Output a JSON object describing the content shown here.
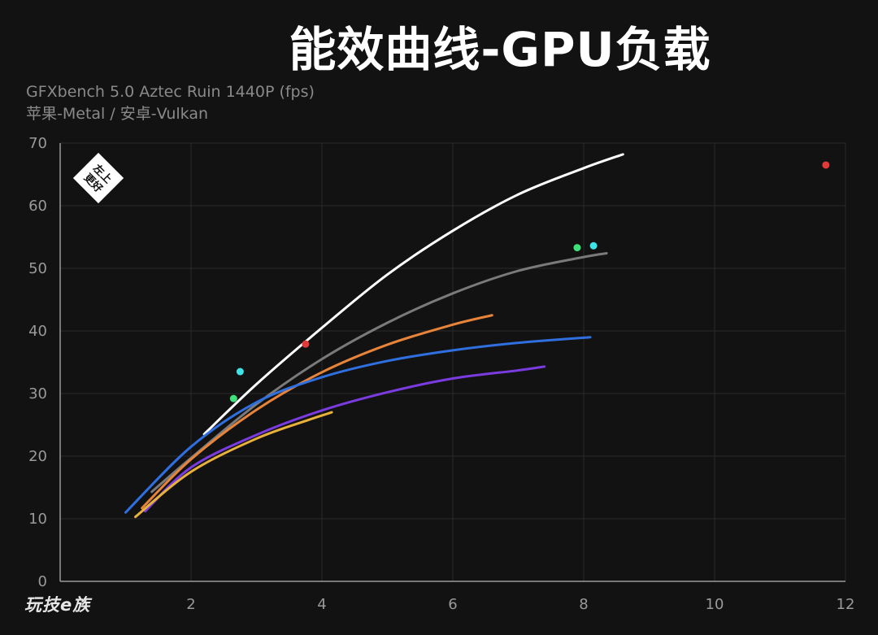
{
  "header": {
    "title": "能效曲线-GPU负载",
    "subtitle_line1": "GFXbench 5.0 Aztec Ruin 1440P (fps)",
    "subtitle_line2": "苹果-Metal / 安卓-Vulkan"
  },
  "badge": {
    "line1": "左上",
    "line2": "更好"
  },
  "watermark": "玩技e族",
  "chart_data": {
    "type": "line",
    "title": "能效曲线-GPU负载",
    "xlim": [
      0,
      12
    ],
    "ylim": [
      0,
      70
    ],
    "xticks": [
      2,
      4,
      6,
      8,
      10,
      12
    ],
    "yticks": [
      0,
      10,
      20,
      30,
      40,
      50,
      60,
      70
    ],
    "grid": true,
    "series": [
      {
        "color": "#ffffff",
        "points": [
          [
            2.2,
            23.5
          ],
          [
            3.0,
            31.5
          ],
          [
            4.0,
            40.5
          ],
          [
            5.0,
            49.0
          ],
          [
            6.0,
            56.0
          ],
          [
            7.0,
            61.8
          ],
          [
            8.0,
            66.0
          ],
          [
            8.6,
            68.2
          ]
        ]
      },
      {
        "color": "#7a7a7a",
        "points": [
          [
            1.4,
            14.3
          ],
          [
            2.0,
            19.7
          ],
          [
            3.0,
            28.3
          ],
          [
            4.0,
            35.5
          ],
          [
            5.0,
            41.3
          ],
          [
            6.0,
            46.0
          ],
          [
            7.0,
            49.6
          ],
          [
            8.0,
            51.8
          ],
          [
            8.35,
            52.4
          ]
        ]
      },
      {
        "color": "#e8843a",
        "points": [
          [
            1.25,
            11.7
          ],
          [
            2.0,
            19.5
          ],
          [
            3.0,
            27.4
          ],
          [
            4.0,
            33.4
          ],
          [
            5.0,
            37.8
          ],
          [
            6.0,
            41.0
          ],
          [
            6.6,
            42.5
          ]
        ]
      },
      {
        "color": "#2f6fe0",
        "points": [
          [
            1.0,
            11.0
          ],
          [
            2.0,
            21.5
          ],
          [
            3.0,
            28.6
          ],
          [
            4.0,
            32.6
          ],
          [
            5.0,
            35.2
          ],
          [
            6.0,
            36.9
          ],
          [
            7.0,
            38.1
          ],
          [
            8.1,
            39.0
          ]
        ]
      },
      {
        "color": "#7a3ce0",
        "points": [
          [
            1.3,
            11.2
          ],
          [
            2.0,
            18.2
          ],
          [
            3.0,
            23.4
          ],
          [
            4.0,
            27.3
          ],
          [
            5.0,
            30.2
          ],
          [
            6.0,
            32.4
          ],
          [
            7.0,
            33.7
          ],
          [
            7.4,
            34.3
          ]
        ]
      },
      {
        "color": "#e8b23a",
        "points": [
          [
            1.15,
            10.3
          ],
          [
            2.0,
            17.5
          ],
          [
            3.0,
            22.8
          ],
          [
            3.8,
            25.8
          ],
          [
            4.15,
            27.0
          ]
        ]
      }
    ],
    "points": [
      {
        "x": 2.75,
        "y": 33.5,
        "color": "#3fe3e6"
      },
      {
        "x": 2.65,
        "y": 29.2,
        "color": "#3ee07a"
      },
      {
        "x": 3.75,
        "y": 37.9,
        "color": "#e03a3a"
      },
      {
        "x": 7.9,
        "y": 53.3,
        "color": "#3ee07a"
      },
      {
        "x": 8.15,
        "y": 53.6,
        "color": "#3fe3e6"
      },
      {
        "x": 11.7,
        "y": 66.5,
        "color": "#e03a3a"
      }
    ]
  }
}
